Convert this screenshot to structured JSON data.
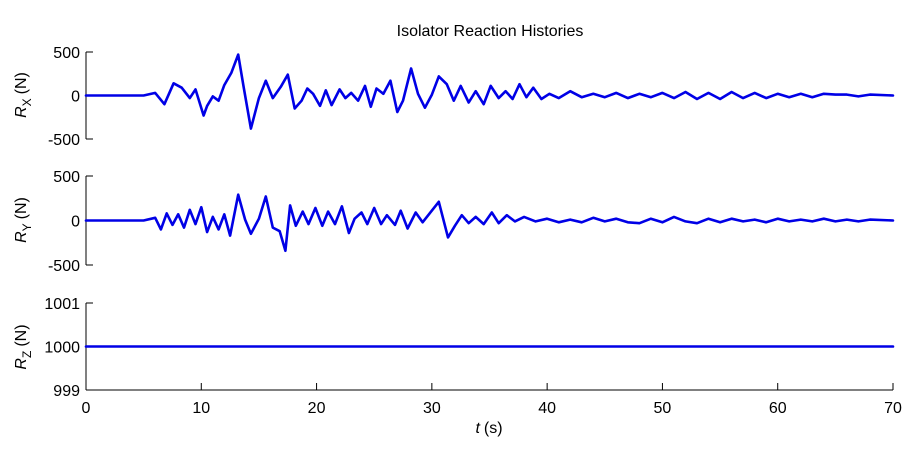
{
  "chart_data": [
    {
      "type": "line",
      "title": "Isolator Reaction Histories",
      "ylabel_symbol": "R",
      "ylabel_subscript": "X",
      "ylabel_unit": "(N)",
      "xlim": [
        0,
        70
      ],
      "ylim": [
        -500,
        500
      ],
      "yticks": [
        500,
        0,
        -500
      ],
      "grid": false,
      "series": [
        {
          "color": "#0000e6",
          "x": [
            0,
            5,
            6,
            6.8,
            7.6,
            8.3,
            9.0,
            9.5,
            10.2,
            10.5,
            11.0,
            11.5,
            12.0,
            12.6,
            13.2,
            13.7,
            14.3,
            15.0,
            15.6,
            16.2,
            16.9,
            17.5,
            18.1,
            18.7,
            19.2,
            19.7,
            20.3,
            20.8,
            21.3,
            22.0,
            22.5,
            23.0,
            23.6,
            24.2,
            24.7,
            25.2,
            25.8,
            26.4,
            27.0,
            27.5,
            28.2,
            28.8,
            29.4,
            30.0,
            30.6,
            31.3,
            31.9,
            32.5,
            33.2,
            33.8,
            34.5,
            35.1,
            35.8,
            36.4,
            37.0,
            37.6,
            38.2,
            38.8,
            39.5,
            40.2,
            41.0,
            42.0,
            43.0,
            44.0,
            45.0,
            46.0,
            47.0,
            48.0,
            49.0,
            50.0,
            51.0,
            52.0,
            53.0,
            54.0,
            55.0,
            56.0,
            57.0,
            58.0,
            59.0,
            60.0,
            61.0,
            62.0,
            63.0,
            64.0,
            65.0,
            66.0,
            67.0,
            68.0,
            70.0
          ],
          "y": [
            0,
            0,
            30,
            -100,
            140,
            90,
            -30,
            70,
            -230,
            -120,
            -10,
            -60,
            120,
            260,
            470,
            80,
            -380,
            -30,
            170,
            -30,
            100,
            240,
            -150,
            -60,
            80,
            20,
            -120,
            60,
            -110,
            70,
            -30,
            30,
            -60,
            110,
            -130,
            80,
            20,
            170,
            -190,
            -60,
            310,
            20,
            -140,
            10,
            220,
            130,
            -60,
            110,
            -80,
            50,
            -100,
            110,
            -30,
            50,
            -40,
            130,
            -20,
            90,
            -40,
            20,
            -30,
            50,
            -20,
            20,
            -20,
            30,
            -30,
            20,
            -20,
            30,
            -30,
            40,
            -40,
            30,
            -40,
            40,
            -30,
            30,
            -30,
            20,
            -20,
            20,
            -20,
            20,
            10,
            10,
            -10,
            10,
            0
          ]
        }
      ]
    },
    {
      "type": "line",
      "ylabel_symbol": "R",
      "ylabel_subscript": "Y",
      "ylabel_unit": "(N)",
      "xlim": [
        0,
        70
      ],
      "ylim": [
        -500,
        500
      ],
      "yticks": [
        500,
        0,
        -500
      ],
      "grid": false,
      "series": [
        {
          "color": "#0000e6",
          "x": [
            0,
            5,
            6.0,
            6.5,
            7.0,
            7.5,
            8.0,
            8.5,
            9.0,
            9.5,
            10.0,
            10.5,
            11.0,
            11.5,
            12.0,
            12.5,
            13.2,
            13.8,
            14.3,
            15.0,
            15.6,
            16.2,
            16.8,
            17.3,
            17.7,
            18.2,
            18.8,
            19.3,
            19.9,
            20.5,
            21.0,
            21.6,
            22.2,
            22.8,
            23.3,
            23.9,
            24.4,
            25.0,
            25.6,
            26.1,
            26.8,
            27.3,
            27.9,
            28.6,
            29.2,
            29.8,
            30.6,
            31.4,
            32.0,
            32.6,
            33.2,
            33.8,
            34.5,
            35.2,
            35.8,
            36.5,
            37.2,
            38.0,
            39.0,
            40.0,
            41.0,
            42.0,
            43.0,
            44.0,
            45.0,
            46.0,
            47.0,
            48.0,
            49.0,
            50.0,
            51.0,
            52.0,
            53.0,
            54.0,
            55.0,
            56.0,
            57.0,
            58.0,
            59.0,
            60.0,
            61.0,
            62.0,
            63.0,
            64.0,
            65.0,
            66.0,
            67.0,
            68.0,
            70.0
          ],
          "y": [
            0,
            0,
            30,
            -100,
            80,
            -50,
            70,
            -80,
            120,
            -40,
            150,
            -130,
            40,
            -100,
            70,
            -170,
            290,
            10,
            -150,
            20,
            270,
            -80,
            -120,
            -340,
            170,
            -60,
            100,
            -40,
            140,
            -60,
            100,
            -40,
            160,
            -140,
            20,
            90,
            -40,
            140,
            -40,
            60,
            -50,
            110,
            -90,
            90,
            -20,
            80,
            210,
            -190,
            -60,
            60,
            -30,
            40,
            -40,
            90,
            -30,
            60,
            -10,
            40,
            -10,
            20,
            -20,
            10,
            -20,
            30,
            -10,
            20,
            -20,
            -30,
            20,
            -20,
            40,
            -10,
            -30,
            20,
            -20,
            20,
            -10,
            10,
            -20,
            20,
            -10,
            10,
            -10,
            20,
            -10,
            10,
            -10,
            10,
            0
          ]
        }
      ]
    },
    {
      "type": "line",
      "ylabel_symbol": "R",
      "ylabel_subscript": "Z",
      "ylabel_unit": "(N)",
      "xlabel_symbol": "t",
      "xlabel_unit": "(s)",
      "xlim": [
        0,
        70
      ],
      "ylim": [
        999,
        1001
      ],
      "yticks": [
        1001,
        1000,
        999
      ],
      "xticks": [
        0,
        10,
        20,
        30,
        40,
        50,
        60,
        70
      ],
      "grid": false,
      "series": [
        {
          "color": "#0000e6",
          "x": [
            0,
            70
          ],
          "y": [
            1000,
            1000
          ]
        }
      ]
    }
  ]
}
